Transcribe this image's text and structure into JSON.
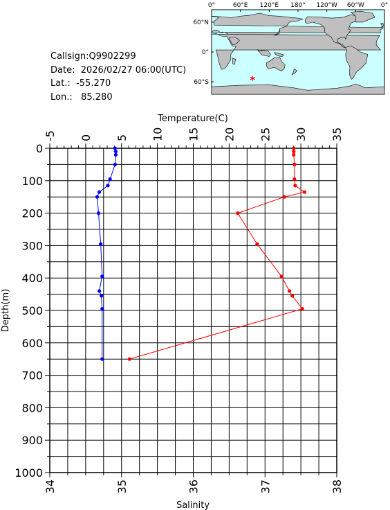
{
  "info": {
    "callsign": "Callsign:Q9902299",
    "date": "Date:  2026/02/27 06:00(UTC)",
    "lat": "Lat.:  -55.270",
    "lon": "Lon.:   85.280"
  },
  "map": {
    "top_ticks": [
      "0°",
      "60°E",
      "120°E",
      "180°",
      "120°W",
      "60°W",
      "0°"
    ],
    "left_ticks": [
      "60°N",
      "0°",
      "60°S"
    ],
    "ocean_color": "#ccffff",
    "land_color": "#bfbfbf",
    "marker": {
      "lon": 85.28,
      "lat": -55.27,
      "color": "#ff0000",
      "symbol": "*"
    }
  },
  "chart_data": {
    "type": "line",
    "ylabel": "Depth(m)",
    "ylim": [
      1000,
      0
    ],
    "yticks": [
      "0",
      "100",
      "200",
      "300",
      "400",
      "500",
      "600",
      "700",
      "800",
      "900",
      "1000"
    ],
    "temperature_axis": {
      "label": "Temperature(C)",
      "lim": [
        -5,
        35
      ],
      "ticks": [
        "-5",
        "0",
        "5",
        "10",
        "15",
        "20",
        "25",
        "30",
        "35"
      ]
    },
    "salinity_axis": {
      "label": "Salinity",
      "lim": [
        34,
        38
      ],
      "ticks": [
        "34",
        "35",
        "36",
        "37",
        "38"
      ]
    },
    "grid": true,
    "series": [
      {
        "axis": "salinity",
        "color": "#0000ff",
        "points": [
          {
            "depth": 0,
            "value": 34.91
          },
          {
            "depth": 10,
            "value": 34.92
          },
          {
            "depth": 20,
            "value": 34.92
          },
          {
            "depth": 50,
            "value": 34.91
          },
          {
            "depth": 95,
            "value": 34.84
          },
          {
            "depth": 115,
            "value": 34.81
          },
          {
            "depth": 135,
            "value": 34.69
          },
          {
            "depth": 150,
            "value": 34.66
          },
          {
            "depth": 200,
            "value": 34.68
          },
          {
            "depth": 295,
            "value": 34.71
          },
          {
            "depth": 395,
            "value": 34.73
          },
          {
            "depth": 440,
            "value": 34.69
          },
          {
            "depth": 455,
            "value": 34.72
          },
          {
            "depth": 495,
            "value": 34.73
          },
          {
            "depth": 650,
            "value": 34.73
          }
        ]
      },
      {
        "axis": "temperature",
        "color": "#ff0000",
        "points": [
          {
            "depth": 0,
            "value": 29.0
          },
          {
            "depth": 10,
            "value": 29.0
          },
          {
            "depth": 20,
            "value": 29.0
          },
          {
            "depth": 50,
            "value": 29.1
          },
          {
            "depth": 95,
            "value": 29.1
          },
          {
            "depth": 115,
            "value": 29.2
          },
          {
            "depth": 135,
            "value": 30.5
          },
          {
            "depth": 150,
            "value": 27.7
          },
          {
            "depth": 200,
            "value": 21.2
          },
          {
            "depth": 295,
            "value": 23.9
          },
          {
            "depth": 395,
            "value": 27.3
          },
          {
            "depth": 440,
            "value": 28.4
          },
          {
            "depth": 455,
            "value": 28.8
          },
          {
            "depth": 495,
            "value": 30.2
          },
          {
            "depth": 650,
            "value": 6.1
          }
        ]
      }
    ]
  }
}
